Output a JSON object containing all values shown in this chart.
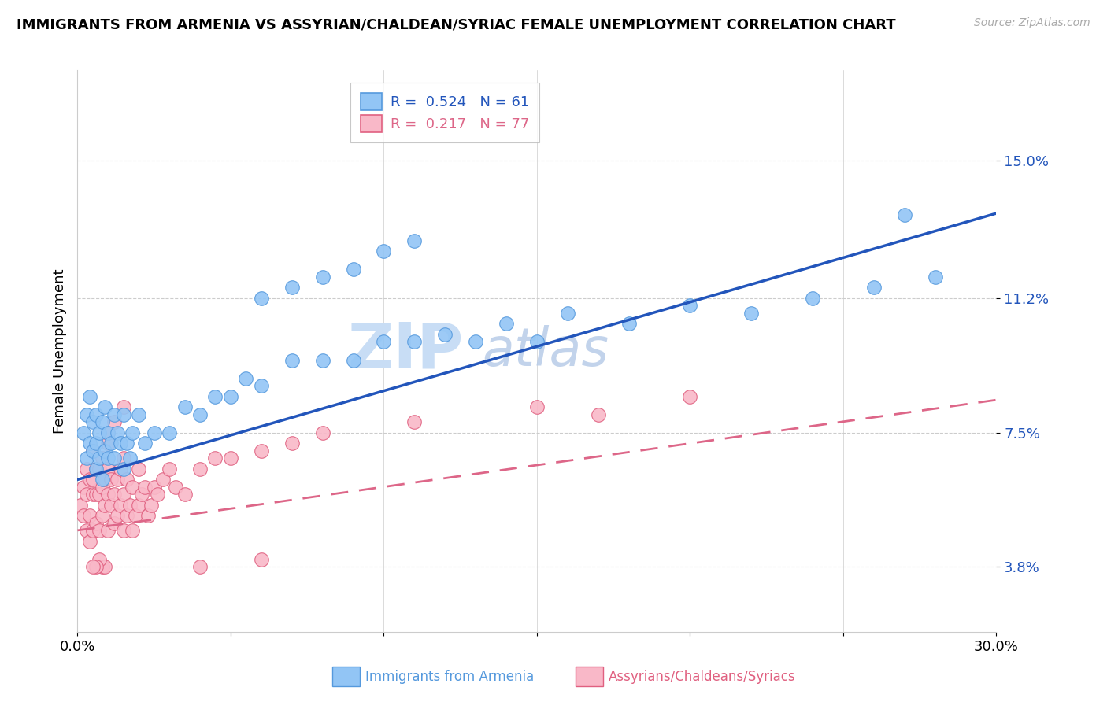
{
  "title": "IMMIGRANTS FROM ARMENIA VS ASSYRIAN/CHALDEAN/SYRIAC FEMALE UNEMPLOYMENT CORRELATION CHART",
  "source": "Source: ZipAtlas.com",
  "ylabel": "Female Unemployment",
  "xlim": [
    0.0,
    0.3
  ],
  "yticks": [
    0.038,
    0.075,
    0.112,
    0.15
  ],
  "ytick_labels": [
    "3.8%",
    "7.5%",
    "11.2%",
    "15.0%"
  ],
  "legend_label1": "R =  0.524   N = 61",
  "legend_label2": "R =  0.217   N = 77",
  "series1_color": "#92c5f5",
  "series1_edge": "#5599dd",
  "series2_color": "#f9b8c8",
  "series2_edge": "#e06080",
  "trend1_color": "#2255bb",
  "trend2_color": "#dd6688",
  "watermark": "ZIPAtlas",
  "watermark_color": "#c8ddf5",
  "trend1_intercept": 0.062,
  "trend1_slope": 0.245,
  "trend2_intercept": 0.048,
  "trend2_slope": 0.12,
  "series1_x": [
    0.002,
    0.003,
    0.003,
    0.004,
    0.004,
    0.005,
    0.005,
    0.006,
    0.006,
    0.006,
    0.007,
    0.007,
    0.008,
    0.008,
    0.009,
    0.009,
    0.01,
    0.01,
    0.011,
    0.012,
    0.012,
    0.013,
    0.014,
    0.015,
    0.015,
    0.016,
    0.017,
    0.018,
    0.02,
    0.022,
    0.025,
    0.03,
    0.035,
    0.04,
    0.045,
    0.05,
    0.055,
    0.06,
    0.07,
    0.08,
    0.09,
    0.1,
    0.11,
    0.12,
    0.13,
    0.14,
    0.15,
    0.16,
    0.18,
    0.2,
    0.22,
    0.24,
    0.26,
    0.28,
    0.06,
    0.07,
    0.08,
    0.09,
    0.1,
    0.11,
    0.27
  ],
  "series1_y": [
    0.075,
    0.068,
    0.08,
    0.072,
    0.085,
    0.07,
    0.078,
    0.065,
    0.072,
    0.08,
    0.068,
    0.075,
    0.062,
    0.078,
    0.07,
    0.082,
    0.068,
    0.075,
    0.072,
    0.08,
    0.068,
    0.075,
    0.072,
    0.065,
    0.08,
    0.072,
    0.068,
    0.075,
    0.08,
    0.072,
    0.075,
    0.075,
    0.082,
    0.08,
    0.085,
    0.085,
    0.09,
    0.088,
    0.095,
    0.095,
    0.095,
    0.1,
    0.1,
    0.102,
    0.1,
    0.105,
    0.1,
    0.108,
    0.105,
    0.11,
    0.108,
    0.112,
    0.115,
    0.118,
    0.112,
    0.115,
    0.118,
    0.12,
    0.125,
    0.128,
    0.135
  ],
  "series2_x": [
    0.001,
    0.002,
    0.002,
    0.003,
    0.003,
    0.003,
    0.004,
    0.004,
    0.004,
    0.005,
    0.005,
    0.005,
    0.005,
    0.006,
    0.006,
    0.006,
    0.007,
    0.007,
    0.007,
    0.008,
    0.008,
    0.008,
    0.009,
    0.009,
    0.01,
    0.01,
    0.01,
    0.01,
    0.011,
    0.011,
    0.012,
    0.012,
    0.013,
    0.013,
    0.014,
    0.014,
    0.015,
    0.015,
    0.015,
    0.016,
    0.016,
    0.017,
    0.018,
    0.018,
    0.019,
    0.02,
    0.02,
    0.021,
    0.022,
    0.023,
    0.024,
    0.025,
    0.026,
    0.028,
    0.03,
    0.032,
    0.035,
    0.04,
    0.045,
    0.05,
    0.06,
    0.07,
    0.08,
    0.01,
    0.012,
    0.015,
    0.11,
    0.15,
    0.04,
    0.06,
    0.008,
    0.009,
    0.007,
    0.006,
    0.005,
    0.17,
    0.2
  ],
  "series2_y": [
    0.055,
    0.052,
    0.06,
    0.048,
    0.058,
    0.065,
    0.052,
    0.062,
    0.045,
    0.058,
    0.048,
    0.062,
    0.07,
    0.05,
    0.058,
    0.065,
    0.048,
    0.058,
    0.065,
    0.052,
    0.06,
    0.068,
    0.055,
    0.062,
    0.048,
    0.058,
    0.065,
    0.072,
    0.055,
    0.062,
    0.05,
    0.058,
    0.052,
    0.062,
    0.055,
    0.065,
    0.048,
    0.058,
    0.068,
    0.052,
    0.062,
    0.055,
    0.048,
    0.06,
    0.052,
    0.055,
    0.065,
    0.058,
    0.06,
    0.052,
    0.055,
    0.06,
    0.058,
    0.062,
    0.065,
    0.06,
    0.058,
    0.065,
    0.068,
    0.068,
    0.07,
    0.072,
    0.075,
    0.075,
    0.078,
    0.082,
    0.078,
    0.082,
    0.038,
    0.04,
    0.038,
    0.038,
    0.04,
    0.038,
    0.038,
    0.08,
    0.085
  ]
}
